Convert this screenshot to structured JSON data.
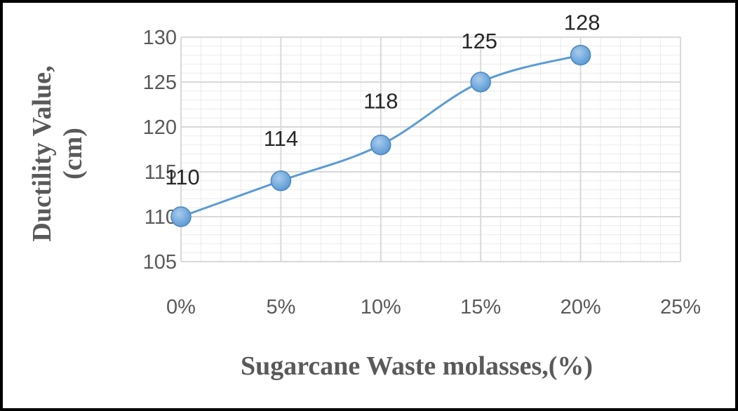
{
  "chart_data": {
    "type": "line",
    "x": [
      0,
      5,
      10,
      15,
      20
    ],
    "x_ticks": [
      "0%",
      "5%",
      "10%",
      "15%",
      "20%",
      "25%"
    ],
    "xlim": [
      0,
      25
    ],
    "values": [
      110,
      114,
      118,
      125,
      128
    ],
    "data_labels": [
      "110",
      "114",
      "118",
      "125",
      "128"
    ],
    "y_ticks": [
      "105",
      "110",
      "115",
      "120",
      "125",
      "130"
    ],
    "ylim": [
      105,
      130
    ],
    "xlabel": "Sugarcane Waste molasses,(%)",
    "ylabel_line1": "Ductility Value,",
    "ylabel_line2": "(cm)",
    "grid": true,
    "legend": "none",
    "colors": {
      "line": "#5B9BD5",
      "marker": "#5B9BD5",
      "grid": "#D9D9D9"
    }
  }
}
